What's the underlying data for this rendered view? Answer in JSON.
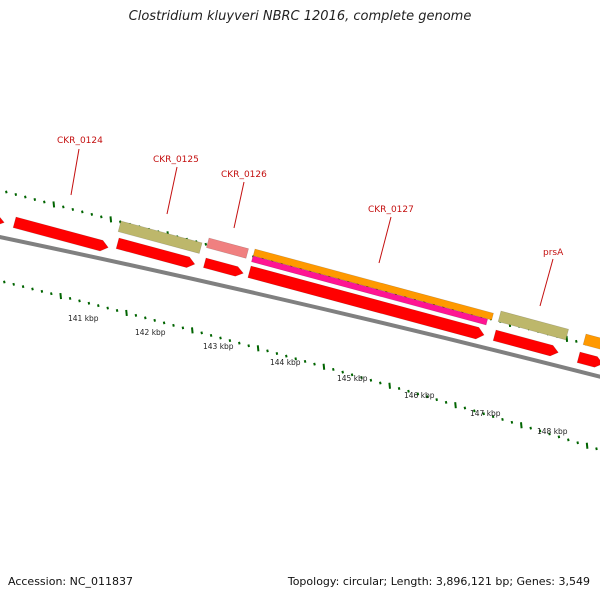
{
  "header": {
    "title": "Clostridium kluyveri NBRC 12016, complete genome"
  },
  "footer": {
    "accession": "Accession: NC_011837",
    "summary": "Topology: circular; Length: 3,896,121 bp; Genes: 3,549"
  },
  "colors": {
    "cds": "#ff0000",
    "gene_olive": "#bdb76b",
    "gene_pink": "#f08080",
    "gene_orange": "#ff9900",
    "gene_magenta": "#ff1493",
    "backbone": "#808080",
    "ticks": "#006400",
    "label": "#c41010"
  },
  "scale": {
    "unit": "kbp",
    "major_ticks": [
      {
        "kbp": 141,
        "label": "141 kbp"
      },
      {
        "kbp": 142,
        "label": "142 kbp"
      },
      {
        "kbp": 143,
        "label": "143 kbp"
      },
      {
        "kbp": 144,
        "label": "144 kbp"
      },
      {
        "kbp": 145,
        "label": "145 kbp"
      },
      {
        "kbp": 146,
        "label": "146 kbp"
      },
      {
        "kbp": 147,
        "label": "147 kbp"
      },
      {
        "kbp": 148,
        "label": "148 kbp"
      }
    ]
  },
  "genes": [
    {
      "name": "CKR_0124",
      "label": "CKR_0124"
    },
    {
      "name": "CKR_0125",
      "label": "CKR_0125"
    },
    {
      "name": "CKR_0126",
      "label": "CKR_0126"
    },
    {
      "name": "CKR_0127",
      "label": "CKR_0127"
    },
    {
      "name": "prsA",
      "label": "prsA"
    }
  ]
}
